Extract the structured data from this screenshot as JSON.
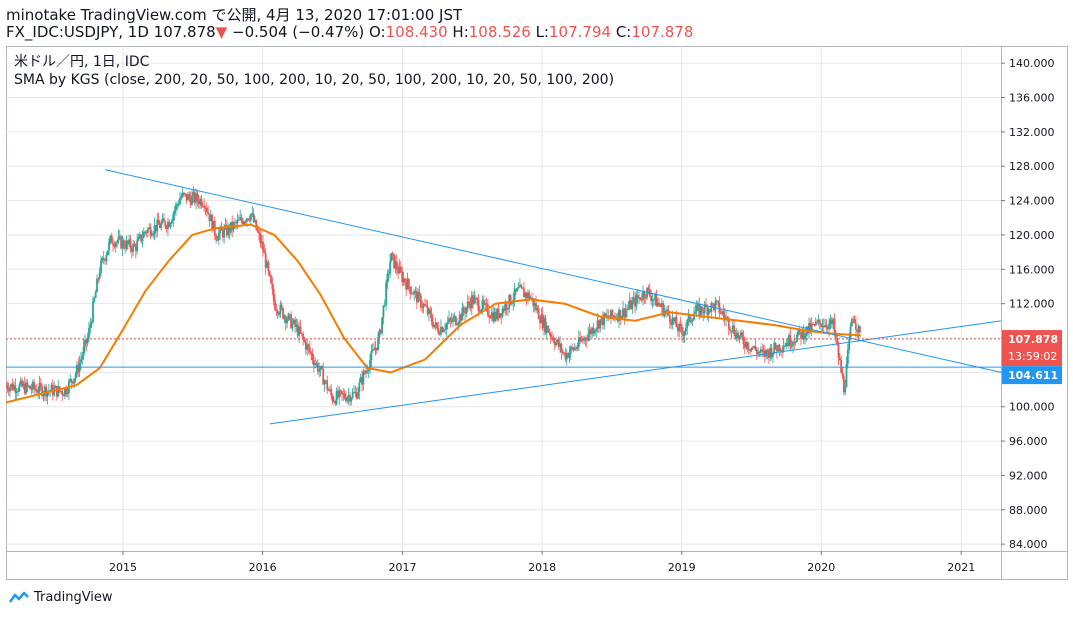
{
  "header": {
    "author_line": "minotake TradingView.com で公開, 4月 13, 2020 17:01:00 JST",
    "symbol": "FX_IDC:USDJPY, 1D 107.878",
    "change_arrow": "▼",
    "change": "−0.504 (−0.47%)",
    "o_label": "O:",
    "o_value": "108.430",
    "h_label": "H:",
    "h_value": "108.526",
    "l_label": "L:",
    "l_value": "107.794",
    "c_label": "C:",
    "c_value": "107.878"
  },
  "legend": {
    "line1": "米ドル／円, 1日, IDC",
    "line2": "SMA by KGS (close, 200, 20, 50, 100, 200, 10, 20, 50, 100, 200, 10, 20, 50, 100, 200)"
  },
  "price_tags": {
    "last": "107.878",
    "countdown": "13:59:02",
    "level": "104.611"
  },
  "colors": {
    "up": "#26a69a",
    "down": "#ef5350",
    "sma": "#f57c00",
    "trend": "#2196f3",
    "grid": "#e6e6e6",
    "last_tag": "#ef5350",
    "level_tag": "#2196f3"
  },
  "brand": {
    "name": "TradingView"
  },
  "chart_data": {
    "type": "line",
    "x_range": [
      "2014-03-01",
      "2021-04-15"
    ],
    "y_range": [
      83.2,
      142.0
    ],
    "x_ticks": [
      "2015",
      "2016",
      "2017",
      "2018",
      "2019",
      "2020",
      "2021"
    ],
    "y_ticks": [
      "140.000",
      "136.000",
      "132.000",
      "128.000",
      "124.000",
      "120.000",
      "116.000",
      "112.000",
      "108.000",
      "104.000",
      "100.000",
      "96.000",
      "92.000",
      "88.000",
      "84.000"
    ],
    "grid": true,
    "price_series": {
      "name": "",
      "x": [
        "2014-03",
        "2014-06",
        "2014-08",
        "2014-09",
        "2014-10",
        "2014-11",
        "2014-12",
        "2015-02",
        "2015-03",
        "2015-05",
        "2015-06",
        "2015-08",
        "2015-09",
        "2015-10",
        "2015-12",
        "2016-01",
        "2016-02",
        "2016-04",
        "2016-06",
        "2016-07",
        "2016-09",
        "2016-11",
        "2016-12",
        "2017-01",
        "2017-03",
        "2017-04",
        "2017-06",
        "2017-07",
        "2017-09",
        "2017-11",
        "2017-12",
        "2018-01",
        "2018-03",
        "2018-04",
        "2018-06",
        "2018-08",
        "2018-10",
        "2018-12",
        "2019-01",
        "2019-02",
        "2019-04",
        "2019-05",
        "2019-06",
        "2019-08",
        "2019-10",
        "2019-12",
        "2020-01",
        "2020-02",
        "2020-03",
        "2020-03-23",
        "2020-04-13"
      ],
      "y": [
        102.5,
        102.0,
        101.8,
        104.0,
        108.0,
        116.0,
        119.5,
        118.5,
        120.5,
        121.5,
        124.5,
        124.0,
        120.0,
        120.5,
        122.5,
        118.5,
        112.0,
        109.0,
        104.0,
        101.0,
        101.5,
        108.0,
        117.5,
        115.0,
        111.5,
        109.0,
        110.5,
        112.5,
        110.5,
        113.5,
        112.8,
        110.0,
        106.0,
        107.0,
        110.0,
        111.0,
        113.5,
        110.5,
        108.5,
        111.0,
        111.8,
        110.0,
        108.0,
        106.0,
        107.5,
        109.0,
        109.8,
        109.5,
        102.0,
        111.0,
        107.878
      ]
    },
    "sma_series": {
      "name": "",
      "x": [
        "2014-03",
        "2014-06",
        "2014-09",
        "2014-11",
        "2015-01",
        "2015-03",
        "2015-05",
        "2015-07",
        "2015-09",
        "2015-12",
        "2016-02",
        "2016-04",
        "2016-06",
        "2016-08",
        "2016-10",
        "2016-12",
        "2017-03",
        "2017-06",
        "2017-09",
        "2017-12",
        "2018-03",
        "2018-06",
        "2018-09",
        "2018-12",
        "2019-03",
        "2019-06",
        "2019-09",
        "2019-12",
        "2020-02",
        "2020-04-13"
      ],
      "y": [
        100.5,
        101.5,
        102.5,
        104.5,
        109.0,
        113.5,
        117.0,
        120.0,
        120.8,
        121.2,
        120.0,
        117.0,
        113.0,
        108.0,
        104.5,
        104.0,
        105.5,
        109.5,
        112.0,
        112.5,
        112.0,
        110.5,
        110.0,
        111.0,
        110.5,
        110.0,
        109.5,
        108.8,
        108.5,
        108.3
      ]
    },
    "trendlines": [
      {
        "x1": "2014-11-15",
        "y1": 127.6,
        "x2": "2021-04-15",
        "y2": 104.0
      },
      {
        "x1": "2016-01-20",
        "y1": 98.0,
        "x2": "2021-04-15",
        "y2": 110.0
      }
    ],
    "horizontal_levels": [
      {
        "value": 104.611,
        "style": "solid"
      },
      {
        "value": 107.878,
        "style": "dotted"
      }
    ],
    "last_value": 107.878
  }
}
